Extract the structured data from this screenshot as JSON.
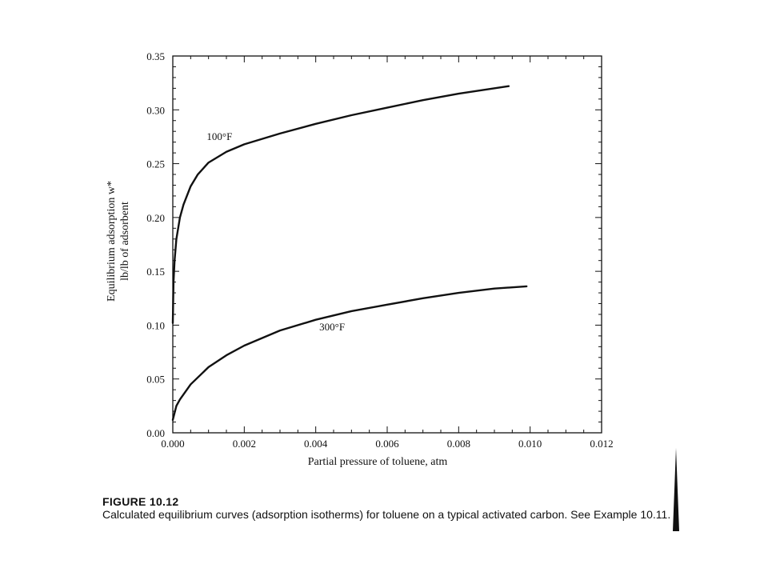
{
  "chart_data": {
    "type": "line",
    "xlabel": "Partial pressure of toluene, atm",
    "ylabel": [
      "Equilibrium adsorption w*",
      "lb/lb of adsorbent"
    ],
    "xlim": [
      0.0,
      0.012
    ],
    "ylim": [
      0.0,
      0.35
    ],
    "x_ticks": [
      "0.000",
      "0.002",
      "0.004",
      "0.006",
      "0.008",
      "0.010",
      "0.012"
    ],
    "y_ticks": [
      "0.00",
      "0.05",
      "0.10",
      "0.15",
      "0.20",
      "0.25",
      "0.30",
      "0.35"
    ],
    "grid": false,
    "series": [
      {
        "name": "100°F",
        "x": [
          0.0,
          2e-05,
          5e-05,
          0.0001,
          0.0002,
          0.0003,
          0.0005,
          0.0007,
          0.001,
          0.0015,
          0.002,
          0.003,
          0.004,
          0.005,
          0.006,
          0.007,
          0.008,
          0.0094
        ],
        "y": [
          0.102,
          0.14,
          0.16,
          0.18,
          0.2,
          0.212,
          0.229,
          0.24,
          0.251,
          0.261,
          0.268,
          0.278,
          0.287,
          0.295,
          0.302,
          0.309,
          0.315,
          0.322
        ]
      },
      {
        "name": "300°F",
        "x": [
          0.0,
          0.0001,
          0.0002,
          0.0005,
          0.001,
          0.0015,
          0.002,
          0.003,
          0.004,
          0.005,
          0.006,
          0.007,
          0.008,
          0.009,
          0.0099
        ],
        "y": [
          0.012,
          0.025,
          0.031,
          0.045,
          0.061,
          0.072,
          0.081,
          0.095,
          0.105,
          0.113,
          0.119,
          0.125,
          0.13,
          0.134,
          0.136
        ]
      }
    ]
  },
  "figure": {
    "title": "FIGURE 10.12",
    "caption": "Calculated equilibrium curves (adsorption isotherms) for toluene on a typical activated carbon. See Example 10.11."
  }
}
